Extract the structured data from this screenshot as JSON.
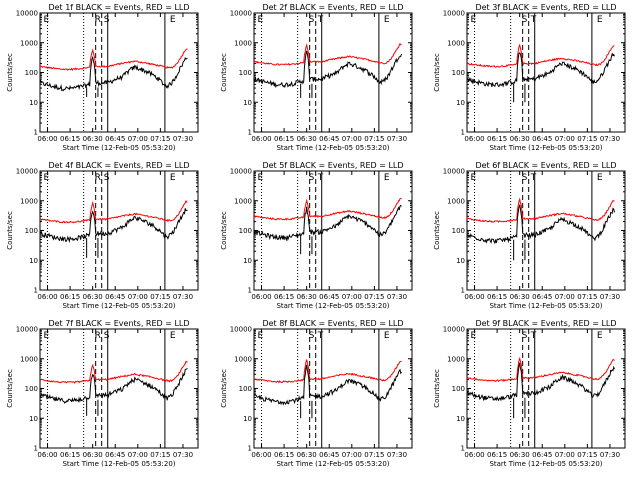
{
  "chart_data": {
    "type": "line",
    "yscale": "log",
    "ylim": [
      1,
      10000
    ],
    "xlim_minutes": [
      -5,
      100
    ],
    "x_origin_label": "06:00",
    "ylabel": "Counts/sec",
    "xlabel": "Start Time (12-Feb-05 05:53:20)",
    "x_ticks": [
      {
        "t": 0,
        "label": "06:00"
      },
      {
        "t": 15,
        "label": "06:15"
      },
      {
        "t": 30,
        "label": "06:30"
      },
      {
        "t": 45,
        "label": "06:45"
      },
      {
        "t": 60,
        "label": "07:00"
      },
      {
        "t": 75,
        "label": "07:15"
      },
      {
        "t": 90,
        "label": "07:30"
      }
    ],
    "y_ticks": [
      {
        "v": 1,
        "label": "1"
      },
      {
        "v": 10,
        "label": "10"
      },
      {
        "v": 100,
        "label": "100"
      },
      {
        "v": 1000,
        "label": "1000"
      },
      {
        "v": 10000,
        "label": "10000"
      }
    ],
    "series_legend": [
      {
        "name": "Events",
        "color": "#000000"
      },
      {
        "name": "LLD",
        "color": "#ff0000"
      }
    ],
    "panels": [
      {
        "title": "Det 1f BLACK = Events, RED = LLD",
        "markers": [
          "E",
          "R",
          "S",
          "E"
        ],
        "base_event": 45,
        "base_lld": 160,
        "saa_peak": 420,
        "saa_dip": 15
      },
      {
        "title": "Det 2f BLACK = Events, RED = LLD",
        "markers": [
          "E",
          "S",
          "T",
          "E"
        ],
        "base_event": 60,
        "base_lld": 230,
        "saa_peak": 600,
        "saa_dip": 14
      },
      {
        "title": "Det 3f BLACK = Events, RED = LLD",
        "markers": [
          "E",
          "S",
          "T",
          "E"
        ],
        "base_event": 60,
        "base_lld": 200,
        "saa_peak": 650,
        "saa_dip": 10
      },
      {
        "title": "Det 4f BLACK = Events, RED = LLD",
        "markers": [
          "E",
          "R",
          "S",
          "E"
        ],
        "base_event": 80,
        "base_lld": 240,
        "saa_peak": 600,
        "saa_dip": 12
      },
      {
        "title": "Det 5f BLACK = Events, RED = LLD",
        "markers": [
          "E",
          "S",
          "T",
          "E"
        ],
        "base_event": 90,
        "base_lld": 300,
        "saa_peak": 700,
        "saa_dip": 16
      },
      {
        "title": "Det 6f BLACK = Events, RED = LLD",
        "markers": [
          "E",
          "S",
          "T",
          "E"
        ],
        "base_event": 70,
        "base_lld": 250,
        "saa_peak": 900,
        "saa_dip": 10
      },
      {
        "title": "Det 7f BLACK = Events, RED = LLD",
        "markers": [
          "E",
          "R",
          "S",
          "E"
        ],
        "base_event": 60,
        "base_lld": 200,
        "saa_peak": 400,
        "saa_dip": 12
      },
      {
        "title": "Det 8f BLACK = Events, RED = LLD",
        "markers": [
          "E",
          "S",
          "T",
          "E"
        ],
        "base_event": 55,
        "base_lld": 210,
        "saa_peak": 700,
        "saa_dip": 10
      },
      {
        "title": "Det 9f BLACK = Events, RED = LLD",
        "markers": [
          "E",
          "S",
          "T",
          "E"
        ],
        "base_event": 70,
        "base_lld": 230,
        "saa_peak": 800,
        "saa_dip": 10
      }
    ],
    "marker_times": {
      "dotted": [
        0,
        24
      ],
      "dashed": [
        32,
        36
      ],
      "solid": [
        40,
        78
      ]
    }
  }
}
